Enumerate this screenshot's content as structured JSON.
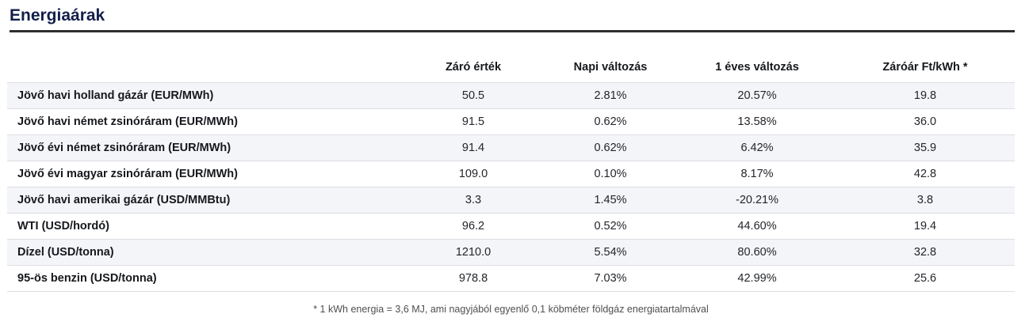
{
  "title": "Energiaárak",
  "chart_data": {
    "type": "table",
    "title": "Energiaárak",
    "columns": [
      "",
      "Záró érték",
      "Napi változás",
      "1 éves változás",
      "Záróár Ft/kWh *"
    ],
    "rows": [
      [
        "Jövő havi holland gázár (EUR/MWh)",
        "50.5",
        "2.81%",
        "20.57%",
        "19.8"
      ],
      [
        "Jövő havi német zsinóráram (EUR/MWh)",
        "91.5",
        "0.62%",
        "13.58%",
        "36.0"
      ],
      [
        "Jövő évi német zsinóráram (EUR/MWh)",
        "91.4",
        "0.62%",
        "6.42%",
        "35.9"
      ],
      [
        "Jövő évi magyar zsinóráram (EUR/MWh)",
        "109.0",
        "0.10%",
        "8.17%",
        "42.8"
      ],
      [
        "Jövő havi amerikai gázár (USD/MMBtu)",
        "3.3",
        "1.45%",
        "-20.21%",
        "3.8"
      ],
      [
        "WTI (USD/hordó)",
        "96.2",
        "0.52%",
        "44.60%",
        "19.4"
      ],
      [
        "Dízel (USD/tonna)",
        "1210.0",
        "5.54%",
        "80.60%",
        "32.8"
      ],
      [
        "95-ös benzin (USD/tonna)",
        "978.8",
        "7.03%",
        "42.99%",
        "25.6"
      ]
    ],
    "footnote": "* 1 kWh energia = 3,6 MJ, ami nagyjából egyenlő 0,1 köbméter földgáz energiatartalmával",
    "layout": {
      "row_striping": "odd rows shaded",
      "value_alignment": "center",
      "label_alignment": "left"
    }
  },
  "colors": {
    "title": "#131f4b",
    "divider": "#2e2e2e",
    "row_shade": "#f4f5f8",
    "separator": "#dbdee4",
    "label_text": "#16181d",
    "value_text": "#23252a",
    "footnote_text": "#4f4f4f"
  }
}
